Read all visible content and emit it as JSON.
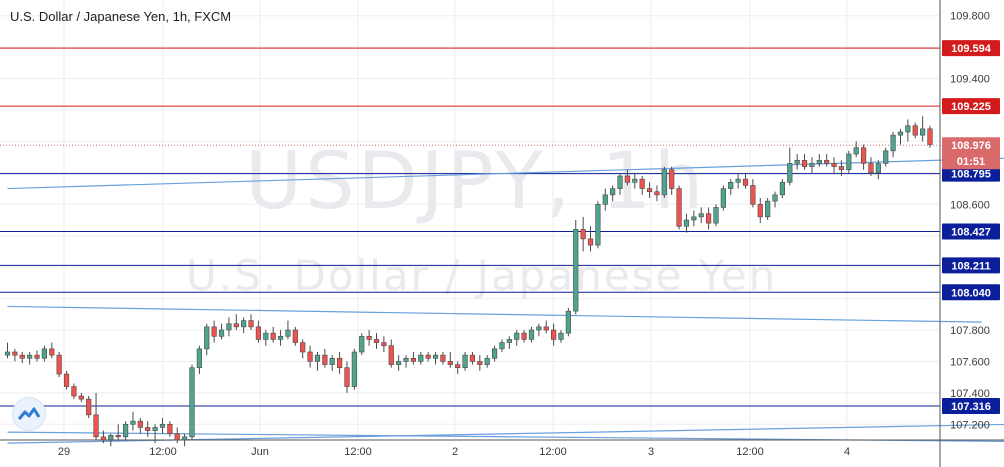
{
  "header": {
    "title": "U.S. Dollar / Japanese Yen, 1h, FXCM"
  },
  "watermark": {
    "symbol": "USDJPY, 1h",
    "name": "U.S. Dollar / Japanese Yen"
  },
  "colors": {
    "up": "#50a48f",
    "down": "#ef5350",
    "support": "#0b1f9a",
    "resistance": "#d31b1b",
    "trendline": "#6aa0dd",
    "current": "#d86a6a",
    "grid": "#eeeeee"
  },
  "chart_data": {
    "type": "candlestick",
    "symbol": "USDJPY",
    "timeframe": "1h",
    "y_axis": {
      "min": 107.1,
      "max": 109.9,
      "ticks": [
        "107.200",
        "107.400",
        "107.600",
        "107.800",
        "108.600",
        "109.400",
        "109.800"
      ]
    },
    "x_axis": {
      "ticks": [
        "29",
        "12:00",
        "Jun",
        "12:00",
        "2",
        "12:00",
        "3",
        "12:00",
        "4"
      ]
    },
    "horizontal_levels": [
      {
        "value": 109.594,
        "label": "109.594",
        "kind": "resistance"
      },
      {
        "value": 109.225,
        "label": "109.225",
        "kind": "resistance"
      },
      {
        "value": 108.795,
        "label": "108.795",
        "kind": "support"
      },
      {
        "value": 108.427,
        "label": "108.427",
        "kind": "support"
      },
      {
        "value": 108.211,
        "label": "108.211",
        "kind": "support"
      },
      {
        "value": 108.04,
        "label": "108.040",
        "kind": "support"
      },
      {
        "value": 107.316,
        "label": "107.316",
        "kind": "support"
      }
    ],
    "current_price": {
      "value": 108.976,
      "label": "108.976",
      "countdown": "01:51"
    },
    "trendlines": [
      {
        "from": [
          0,
          108.7
        ],
        "to": [
          147,
          108.91
        ]
      },
      {
        "from": [
          0,
          107.95
        ],
        "to": [
          132,
          107.85
        ]
      },
      {
        "from": [
          0,
          107.08
        ],
        "to": [
          159,
          107.22
        ]
      },
      {
        "from": [
          0,
          107.15
        ],
        "to": [
          138,
          107.09
        ]
      }
    ],
    "candles": [
      [
        107.64,
        107.72,
        107.62,
        107.66
      ],
      [
        107.66,
        107.68,
        107.6,
        107.64
      ],
      [
        107.64,
        107.66,
        107.59,
        107.62
      ],
      [
        107.62,
        107.66,
        107.58,
        107.64
      ],
      [
        107.64,
        107.67,
        107.6,
        107.62
      ],
      [
        107.62,
        107.7,
        107.6,
        107.68
      ],
      [
        107.68,
        107.72,
        107.62,
        107.64
      ],
      [
        107.64,
        107.66,
        107.5,
        107.52
      ],
      [
        107.52,
        107.54,
        107.42,
        107.44
      ],
      [
        107.44,
        107.46,
        107.36,
        107.38
      ],
      [
        107.38,
        107.4,
        107.34,
        107.36
      ],
      [
        107.36,
        107.38,
        107.24,
        107.26
      ],
      [
        107.26,
        107.4,
        107.1,
        107.12
      ],
      [
        107.12,
        107.16,
        107.08,
        107.1
      ],
      [
        107.1,
        107.14,
        107.06,
        107.13
      ],
      [
        107.13,
        107.2,
        107.1,
        107.12
      ],
      [
        107.12,
        107.22,
        107.1,
        107.2
      ],
      [
        107.2,
        107.28,
        107.16,
        107.22
      ],
      [
        107.22,
        107.24,
        107.14,
        107.18
      ],
      [
        107.18,
        107.22,
        107.12,
        107.16
      ],
      [
        107.16,
        107.2,
        107.08,
        107.18
      ],
      [
        107.18,
        107.24,
        107.14,
        107.2
      ],
      [
        107.2,
        107.22,
        107.12,
        107.14
      ],
      [
        107.14,
        107.18,
        107.08,
        107.1
      ],
      [
        107.1,
        107.14,
        107.06,
        107.12
      ],
      [
        107.12,
        107.58,
        107.1,
        107.56
      ],
      [
        107.56,
        107.7,
        107.52,
        107.68
      ],
      [
        107.68,
        107.84,
        107.64,
        107.82
      ],
      [
        107.82,
        107.86,
        107.72,
        107.76
      ],
      [
        107.76,
        107.84,
        107.74,
        107.8
      ],
      [
        107.8,
        107.88,
        107.76,
        107.84
      ],
      [
        107.84,
        107.9,
        107.8,
        107.82
      ],
      [
        107.82,
        107.88,
        107.78,
        107.86
      ],
      [
        107.86,
        107.9,
        107.8,
        107.82
      ],
      [
        107.82,
        107.86,
        107.72,
        107.74
      ],
      [
        107.74,
        107.8,
        107.7,
        107.78
      ],
      [
        107.78,
        107.82,
        107.72,
        107.74
      ],
      [
        107.74,
        107.8,
        107.7,
        107.76
      ],
      [
        107.76,
        107.86,
        107.74,
        107.8
      ],
      [
        107.8,
        107.82,
        107.7,
        107.72
      ],
      [
        107.72,
        107.74,
        107.62,
        107.66
      ],
      [
        107.66,
        107.7,
        107.56,
        107.6
      ],
      [
        107.6,
        107.66,
        107.54,
        107.64
      ],
      [
        107.64,
        107.68,
        107.56,
        107.58
      ],
      [
        107.58,
        107.64,
        107.54,
        107.62
      ],
      [
        107.62,
        107.66,
        107.52,
        107.56
      ],
      [
        107.56,
        107.6,
        107.4,
        107.44
      ],
      [
        107.44,
        107.68,
        107.42,
        107.66
      ],
      [
        107.66,
        107.78,
        107.64,
        107.76
      ],
      [
        107.76,
        107.8,
        107.7,
        107.74
      ],
      [
        107.74,
        107.78,
        107.68,
        107.72
      ],
      [
        107.72,
        107.76,
        107.66,
        107.7
      ],
      [
        107.7,
        107.74,
        107.56,
        107.58
      ],
      [
        107.58,
        107.64,
        107.54,
        107.6
      ],
      [
        107.6,
        107.64,
        107.56,
        107.62
      ],
      [
        107.62,
        107.66,
        107.58,
        107.6
      ],
      [
        107.6,
        107.66,
        107.58,
        107.64
      ],
      [
        107.64,
        107.66,
        107.6,
        107.62
      ],
      [
        107.62,
        107.66,
        107.58,
        107.64
      ],
      [
        107.64,
        107.66,
        107.58,
        107.6
      ],
      [
        107.6,
        107.66,
        107.56,
        107.58
      ],
      [
        107.58,
        107.6,
        107.52,
        107.56
      ],
      [
        107.56,
        107.66,
        107.54,
        107.64
      ],
      [
        107.64,
        107.66,
        107.58,
        107.6
      ],
      [
        107.6,
        107.64,
        107.54,
        107.58
      ],
      [
        107.58,
        107.64,
        107.56,
        107.62
      ],
      [
        107.62,
        107.7,
        107.6,
        107.68
      ],
      [
        107.68,
        107.74,
        107.66,
        107.72
      ],
      [
        107.72,
        107.76,
        107.68,
        107.74
      ],
      [
        107.74,
        107.8,
        107.7,
        107.78
      ],
      [
        107.78,
        107.8,
        107.72,
        107.74
      ],
      [
        107.74,
        107.82,
        107.72,
        107.8
      ],
      [
        107.8,
        107.84,
        107.76,
        107.82
      ],
      [
        107.82,
        107.86,
        107.78,
        107.8
      ],
      [
        107.8,
        107.84,
        107.7,
        107.74
      ],
      [
        107.74,
        107.8,
        107.72,
        107.78
      ],
      [
        107.78,
        107.94,
        107.76,
        107.92
      ],
      [
        107.92,
        108.5,
        107.9,
        108.44
      ],
      [
        108.44,
        108.52,
        108.3,
        108.38
      ],
      [
        108.38,
        108.46,
        108.3,
        108.34
      ],
      [
        108.34,
        108.62,
        108.32,
        108.6
      ],
      [
        108.6,
        108.7,
        108.56,
        108.66
      ],
      [
        108.66,
        108.72,
        108.62,
        108.7
      ],
      [
        108.7,
        108.8,
        108.66,
        108.78
      ],
      [
        108.78,
        108.82,
        108.72,
        108.74
      ],
      [
        108.74,
        108.8,
        108.7,
        108.76
      ],
      [
        108.76,
        108.78,
        108.66,
        108.7
      ],
      [
        108.7,
        108.74,
        108.64,
        108.68
      ],
      [
        108.68,
        108.72,
        108.62,
        108.66
      ],
      [
        108.66,
        108.84,
        108.64,
        108.82
      ],
      [
        108.82,
        108.84,
        108.66,
        108.7
      ],
      [
        108.7,
        108.72,
        108.44,
        108.46
      ],
      [
        108.46,
        108.54,
        108.42,
        108.5
      ],
      [
        108.5,
        108.56,
        108.46,
        108.52
      ],
      [
        108.52,
        108.58,
        108.48,
        108.54
      ],
      [
        108.54,
        108.58,
        108.44,
        108.48
      ],
      [
        108.48,
        108.6,
        108.46,
        108.58
      ],
      [
        108.58,
        108.72,
        108.56,
        108.7
      ],
      [
        108.7,
        108.76,
        108.66,
        108.74
      ],
      [
        108.74,
        108.8,
        108.7,
        108.76
      ],
      [
        108.76,
        108.8,
        108.7,
        108.72
      ],
      [
        108.72,
        108.76,
        108.58,
        108.6
      ],
      [
        108.6,
        108.64,
        108.48,
        108.52
      ],
      [
        108.52,
        108.64,
        108.5,
        108.62
      ],
      [
        108.62,
        108.68,
        108.58,
        108.66
      ],
      [
        108.66,
        108.76,
        108.64,
        108.74
      ],
      [
        108.74,
        108.96,
        108.72,
        108.86
      ],
      [
        108.86,
        108.92,
        108.82,
        108.88
      ],
      [
        108.88,
        108.92,
        108.82,
        108.84
      ],
      [
        108.84,
        108.9,
        108.8,
        108.86
      ],
      [
        108.86,
        108.92,
        108.84,
        108.88
      ],
      [
        108.88,
        108.92,
        108.84,
        108.86
      ],
      [
        108.86,
        108.9,
        108.8,
        108.84
      ],
      [
        108.84,
        108.88,
        108.78,
        108.82
      ],
      [
        108.82,
        108.94,
        108.8,
        108.92
      ],
      [
        108.92,
        109.0,
        108.9,
        108.96
      ],
      [
        108.96,
        108.98,
        108.82,
        108.86
      ],
      [
        108.86,
        108.9,
        108.78,
        108.8
      ],
      [
        108.8,
        108.88,
        108.76,
        108.86
      ],
      [
        108.86,
        108.96,
        108.84,
        108.94
      ],
      [
        108.94,
        109.06,
        108.9,
        109.04
      ],
      [
        109.04,
        109.08,
        108.98,
        109.06
      ],
      [
        109.06,
        109.14,
        109.0,
        109.1
      ],
      [
        109.1,
        109.12,
        109.02,
        109.04
      ],
      [
        109.04,
        109.16,
        109.0,
        109.08
      ],
      [
        109.08,
        109.1,
        108.96,
        108.98
      ]
    ]
  }
}
